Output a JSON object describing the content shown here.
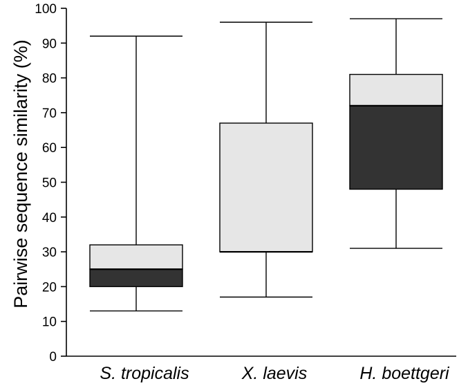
{
  "chart_data": {
    "type": "box",
    "title": "",
    "xlabel": "",
    "ylabel": "Pairwise sequence similarity (%)",
    "ylim": [
      0,
      100
    ],
    "yticks": [
      0,
      10,
      20,
      30,
      40,
      50,
      60,
      70,
      80,
      90,
      100
    ],
    "grid": false,
    "categories": [
      "S. tropicalis",
      "X. laevis",
      "H. boettgeri"
    ],
    "boxes": [
      {
        "category": "S. tropicalis",
        "whisker_low": 13,
        "q1": 20,
        "median": 25,
        "q3": 32,
        "whisker_high": 92
      },
      {
        "category": "X. laevis",
        "whisker_low": 17,
        "q1": 30,
        "median": 30,
        "q3": 67,
        "whisker_high": 96
      },
      {
        "category": "H. boettgeri",
        "whisker_low": 31,
        "q1": 48,
        "median": 72,
        "q3": 81,
        "whisker_high": 97
      }
    ],
    "colors": {
      "lower_box": "#333333",
      "upper_box": "#e6e6e6",
      "stroke": "#000000"
    }
  }
}
